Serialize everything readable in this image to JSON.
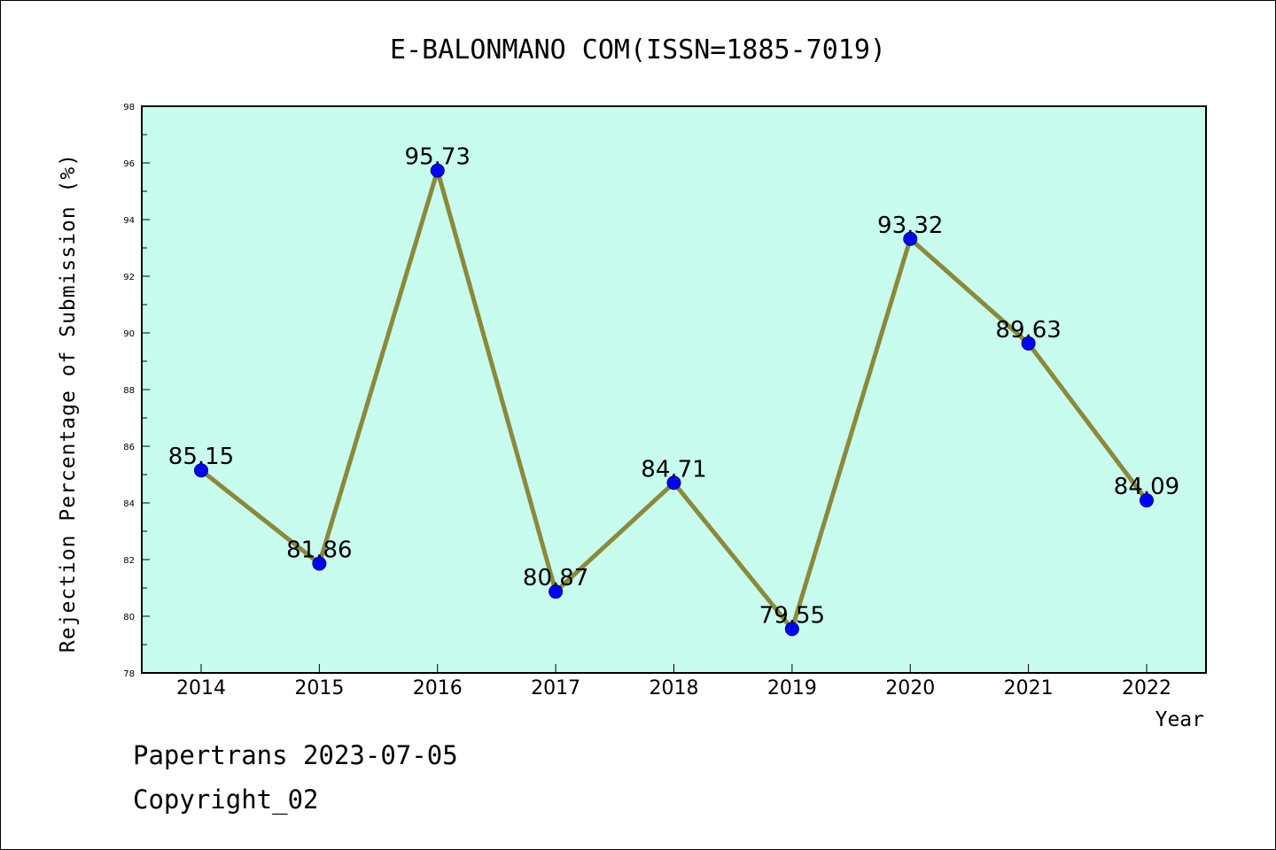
{
  "chart_data": {
    "type": "line",
    "title": "E-BALONMANO COM(ISSN=1885-7019)",
    "xlabel": "Year",
    "ylabel": "Rejection Percentage of Submission (%)",
    "categories": [
      "2014",
      "2015",
      "2016",
      "2017",
      "2018",
      "2019",
      "2020",
      "2021",
      "2022"
    ],
    "values": [
      85.15,
      81.86,
      95.73,
      80.87,
      84.71,
      79.55,
      93.32,
      89.63,
      84.09
    ],
    "data_labels": [
      "85.15",
      "81.86",
      "95.73",
      "80.87",
      "84.71",
      "79.55",
      "93.32",
      "89.63",
      "84.09"
    ],
    "ylim": [
      78,
      98
    ],
    "yticks": [
      "78",
      "80",
      "82",
      "84",
      "86",
      "88",
      "90",
      "92",
      "94",
      "96",
      "98"
    ],
    "grid": false,
    "legend": "none",
    "colors": {
      "plot_background": "#c8fcee",
      "line": "#8b8a3a",
      "marker": "#0000ff"
    }
  },
  "footer": {
    "line1": "Papertrans 2023-07-05",
    "line2": "Copyright_02"
  }
}
